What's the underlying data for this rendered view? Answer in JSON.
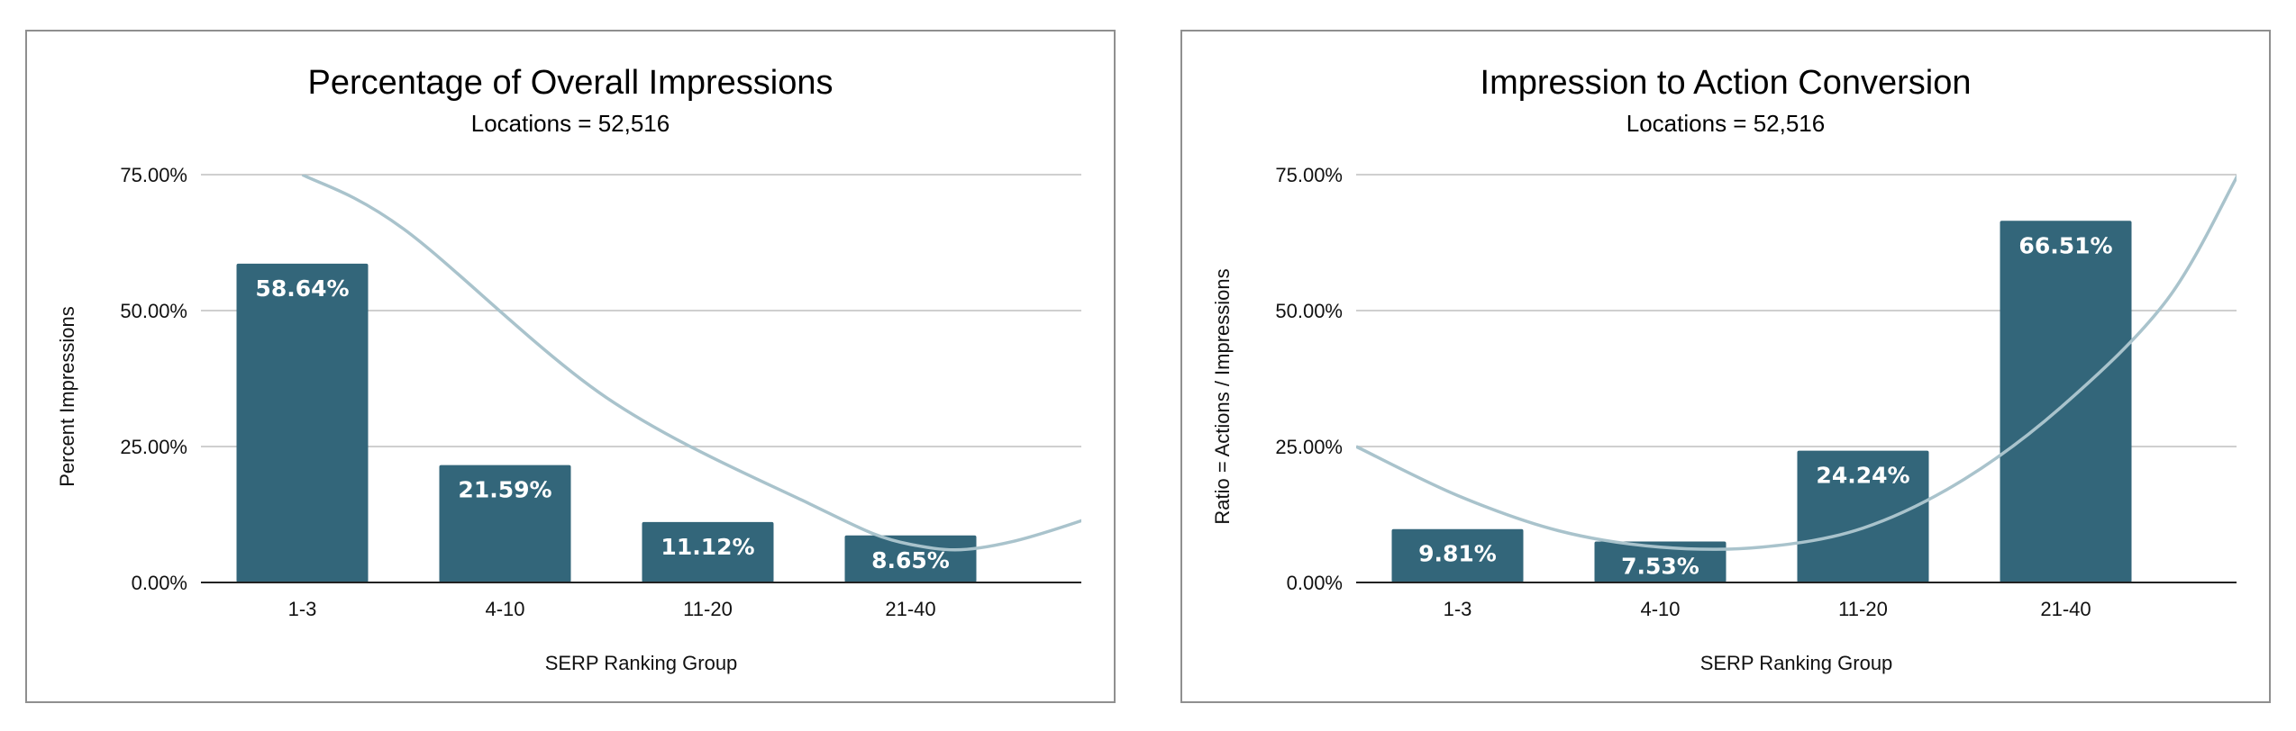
{
  "chart_data": [
    {
      "type": "bar",
      "title": "Percentage of Overall Impressions",
      "subtitle": "Locations = 52,516",
      "categories": [
        "1-3",
        "4-10",
        "11-20",
        "21-40"
      ],
      "values": [
        58.64,
        21.59,
        11.12,
        8.65
      ],
      "value_labels": [
        "58.64%",
        "21.59%",
        "11.12%",
        "8.65%"
      ],
      "xlabel": "SERP Ranking Group",
      "ylabel": "Percent Impressions",
      "ylim": [
        0,
        75
      ],
      "yticks": [
        0,
        25,
        50,
        75
      ],
      "ytick_labels": [
        "0.00%",
        "25.00%",
        "50.00%",
        "75.00%"
      ],
      "grid": true,
      "legend": "none",
      "bar_color": "#33667a",
      "trendline": {
        "type": "polynomial",
        "color": "#a9c3cc",
        "points": [
          [
            0.5,
            75
          ],
          [
            1,
            65
          ],
          [
            2,
            34
          ],
          [
            3,
            14.5
          ],
          [
            3.5,
            7
          ],
          [
            4,
            7.5
          ],
          [
            5,
            20
          ]
        ]
      }
    },
    {
      "type": "bar",
      "title": "Impression to Action Conversion",
      "subtitle": "Locations = 52,516",
      "categories": [
        "1-3",
        "4-10",
        "11-20",
        "21-40"
      ],
      "values": [
        9.81,
        7.53,
        24.24,
        66.51
      ],
      "value_labels": [
        "9.81%",
        "7.53%",
        "24.24%",
        "66.51%"
      ],
      "xlabel": "SERP Ranking Group",
      "ylabel": "Ratio = Actions / Impressions",
      "ylim": [
        0,
        75
      ],
      "yticks": [
        0,
        25,
        50,
        75
      ],
      "ytick_labels": [
        "0.00%",
        "25.00%",
        "50.00%",
        "75.00%"
      ],
      "grid": true,
      "legend": "none",
      "bar_color": "#33667a",
      "trendline": {
        "type": "polynomial",
        "color": "#a9c3cc",
        "points": [
          [
            0,
            25
          ],
          [
            0.5,
            16
          ],
          [
            1,
            9.5
          ],
          [
            1.5,
            6.5
          ],
          [
            2,
            6.5
          ],
          [
            2.5,
            10
          ],
          [
            3,
            19
          ],
          [
            3.5,
            33
          ],
          [
            4,
            52
          ],
          [
            4.35,
            75
          ]
        ]
      }
    }
  ]
}
